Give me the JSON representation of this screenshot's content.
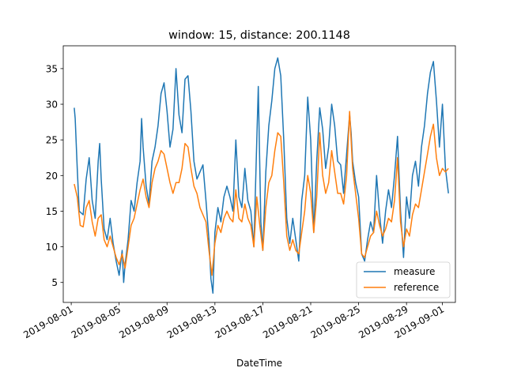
{
  "chart_data": {
    "type": "line",
    "title": "window: 15, distance: 200.1148",
    "xlabel": "DateTime",
    "ylabel": "",
    "x_range": [
      "2019-07-31T08:00",
      "2019-09-02T02:00"
    ],
    "ylim": [
      2.2,
      38.2
    ],
    "x_ticks": [
      "2019-08-01",
      "2019-08-05",
      "2019-08-09",
      "2019-08-13",
      "2019-08-17",
      "2019-08-21",
      "2019-08-25",
      "2019-08-29",
      "2019-09-01"
    ],
    "y_ticks": [
      5,
      10,
      15,
      20,
      25,
      30,
      35
    ],
    "grid": false,
    "legend_position": "lower right",
    "series": [
      {
        "name": "measure",
        "color": "#1f77b4",
        "points": [
          [
            "2019-08-01T06:00",
            29.5
          ],
          [
            "2019-08-01T08:00",
            28.0
          ],
          [
            "2019-08-01T12:00",
            21.0
          ],
          [
            "2019-08-01T16:00",
            15.0
          ],
          [
            "2019-08-02T00:00",
            14.5
          ],
          [
            "2019-08-02T06:00",
            19.5
          ],
          [
            "2019-08-02T12:00",
            22.5
          ],
          [
            "2019-08-02T18:00",
            16.5
          ],
          [
            "2019-08-03T00:00",
            14.0
          ],
          [
            "2019-08-03T06:00",
            22.0
          ],
          [
            "2019-08-03T09:00",
            24.5
          ],
          [
            "2019-08-03T12:00",
            19.5
          ],
          [
            "2019-08-03T18:00",
            12.5
          ],
          [
            "2019-08-04T00:00",
            11.0
          ],
          [
            "2019-08-04T06:00",
            14.0
          ],
          [
            "2019-08-04T12:00",
            10.5
          ],
          [
            "2019-08-04T18:00",
            8.0
          ],
          [
            "2019-08-05T00:00",
            6.0
          ],
          [
            "2019-08-05T06:00",
            9.5
          ],
          [
            "2019-08-05T09:00",
            5.0
          ],
          [
            "2019-08-05T12:00",
            7.5
          ],
          [
            "2019-08-05T18:00",
            11.0
          ],
          [
            "2019-08-06T00:00",
            16.5
          ],
          [
            "2019-08-06T06:00",
            15.0
          ],
          [
            "2019-08-06T12:00",
            19.0
          ],
          [
            "2019-08-06T18:00",
            22.0
          ],
          [
            "2019-08-06T21:00",
            28.0
          ],
          [
            "2019-08-07T00:00",
            24.0
          ],
          [
            "2019-08-07T06:00",
            18.5
          ],
          [
            "2019-08-07T12:00",
            16.0
          ],
          [
            "2019-08-07T18:00",
            22.0
          ],
          [
            "2019-08-08T00:00",
            24.0
          ],
          [
            "2019-08-08T06:00",
            27.0
          ],
          [
            "2019-08-08T12:00",
            31.5
          ],
          [
            "2019-08-08T18:00",
            33.0
          ],
          [
            "2019-08-09T00:00",
            29.0
          ],
          [
            "2019-08-09T06:00",
            24.0
          ],
          [
            "2019-08-09T12:00",
            26.5
          ],
          [
            "2019-08-09T18:00",
            35.0
          ],
          [
            "2019-08-10T00:00",
            28.5
          ],
          [
            "2019-08-10T06:00",
            26.0
          ],
          [
            "2019-08-10T12:00",
            33.5
          ],
          [
            "2019-08-10T18:00",
            34.0
          ],
          [
            "2019-08-11T00:00",
            29.0
          ],
          [
            "2019-08-11T06:00",
            22.0
          ],
          [
            "2019-08-11T12:00",
            19.5
          ],
          [
            "2019-08-11T18:00",
            20.5
          ],
          [
            "2019-08-12T00:00",
            21.5
          ],
          [
            "2019-08-12T06:00",
            16.5
          ],
          [
            "2019-08-12T12:00",
            11.0
          ],
          [
            "2019-08-12T16:00",
            5.5
          ],
          [
            "2019-08-12T20:00",
            3.5
          ],
          [
            "2019-08-13T00:00",
            12.0
          ],
          [
            "2019-08-13T06:00",
            15.5
          ],
          [
            "2019-08-13T12:00",
            13.5
          ],
          [
            "2019-08-13T18:00",
            17.0
          ],
          [
            "2019-08-14T00:00",
            18.5
          ],
          [
            "2019-08-14T06:00",
            17.0
          ],
          [
            "2019-08-14T12:00",
            15.0
          ],
          [
            "2019-08-14T18:00",
            25.0
          ],
          [
            "2019-08-15T00:00",
            17.0
          ],
          [
            "2019-08-15T06:00",
            15.5
          ],
          [
            "2019-08-15T12:00",
            21.0
          ],
          [
            "2019-08-15T18:00",
            16.5
          ],
          [
            "2019-08-16T00:00",
            15.0
          ],
          [
            "2019-08-16T06:00",
            10.0
          ],
          [
            "2019-08-16T12:00",
            25.0
          ],
          [
            "2019-08-16T15:00",
            32.5
          ],
          [
            "2019-08-16T20:00",
            13.5
          ],
          [
            "2019-08-17T00:00",
            9.5
          ],
          [
            "2019-08-17T06:00",
            20.5
          ],
          [
            "2019-08-17T12:00",
            27.0
          ],
          [
            "2019-08-17T18:00",
            30.5
          ],
          [
            "2019-08-18T00:00",
            35.0
          ],
          [
            "2019-08-18T06:00",
            36.5
          ],
          [
            "2019-08-18T12:00",
            34.0
          ],
          [
            "2019-08-18T18:00",
            25.0
          ],
          [
            "2019-08-19T00:00",
            14.0
          ],
          [
            "2019-08-19T06:00",
            10.5
          ],
          [
            "2019-08-19T12:00",
            14.0
          ],
          [
            "2019-08-19T18:00",
            11.0
          ],
          [
            "2019-08-20T00:00",
            8.0
          ],
          [
            "2019-08-20T06:00",
            16.5
          ],
          [
            "2019-08-20T12:00",
            20.0
          ],
          [
            "2019-08-20T18:00",
            31.0
          ],
          [
            "2019-08-21T00:00",
            25.0
          ],
          [
            "2019-08-21T06:00",
            12.0
          ],
          [
            "2019-08-21T12:00",
            22.0
          ],
          [
            "2019-08-21T18:00",
            29.5
          ],
          [
            "2019-08-22T00:00",
            26.5
          ],
          [
            "2019-08-22T06:00",
            21.0
          ],
          [
            "2019-08-22T12:00",
            24.0
          ],
          [
            "2019-08-22T18:00",
            30.0
          ],
          [
            "2019-08-23T00:00",
            27.0
          ],
          [
            "2019-08-23T06:00",
            22.0
          ],
          [
            "2019-08-23T12:00",
            21.5
          ],
          [
            "2019-08-23T18:00",
            17.5
          ],
          [
            "2019-08-24T00:00",
            23.0
          ],
          [
            "2019-08-24T06:00",
            28.5
          ],
          [
            "2019-08-24T09:00",
            26.0
          ],
          [
            "2019-08-24T12:00",
            22.0
          ],
          [
            "2019-08-24T18:00",
            19.0
          ],
          [
            "2019-08-25T00:00",
            17.0
          ],
          [
            "2019-08-25T06:00",
            9.0
          ],
          [
            "2019-08-25T12:00",
            8.0
          ],
          [
            "2019-08-25T18:00",
            11.0
          ],
          [
            "2019-08-26T00:00",
            13.5
          ],
          [
            "2019-08-26T06:00",
            12.0
          ],
          [
            "2019-08-26T12:00",
            20.0
          ],
          [
            "2019-08-26T18:00",
            14.5
          ],
          [
            "2019-08-27T00:00",
            10.5
          ],
          [
            "2019-08-27T06:00",
            15.0
          ],
          [
            "2019-08-27T12:00",
            18.0
          ],
          [
            "2019-08-27T18:00",
            15.5
          ],
          [
            "2019-08-28T00:00",
            20.0
          ],
          [
            "2019-08-28T06:00",
            25.5
          ],
          [
            "2019-08-28T12:00",
            15.0
          ],
          [
            "2019-08-28T18:00",
            8.5
          ],
          [
            "2019-08-29T00:00",
            17.0
          ],
          [
            "2019-08-29T06:00",
            14.0
          ],
          [
            "2019-08-29T12:00",
            20.0
          ],
          [
            "2019-08-29T18:00",
            22.0
          ],
          [
            "2019-08-30T00:00",
            18.5
          ],
          [
            "2019-08-30T06:00",
            24.0
          ],
          [
            "2019-08-30T12:00",
            27.0
          ],
          [
            "2019-08-30T18:00",
            31.5
          ],
          [
            "2019-08-31T00:00",
            34.5
          ],
          [
            "2019-08-31T06:00",
            36.0
          ],
          [
            "2019-08-31T12:00",
            30.5
          ],
          [
            "2019-08-31T18:00",
            24.0
          ],
          [
            "2019-09-01T00:00",
            30.0
          ],
          [
            "2019-09-01T06:00",
            21.0
          ],
          [
            "2019-09-01T12:00",
            17.5
          ]
        ]
      },
      {
        "name": "reference",
        "color": "#ff7f0e",
        "points": [
          [
            "2019-08-01T06:00",
            18.8
          ],
          [
            "2019-08-01T12:00",
            17.0
          ],
          [
            "2019-08-01T18:00",
            13.0
          ],
          [
            "2019-08-02T00:00",
            12.8
          ],
          [
            "2019-08-02T06:00",
            15.5
          ],
          [
            "2019-08-02T12:00",
            16.5
          ],
          [
            "2019-08-02T18:00",
            13.5
          ],
          [
            "2019-08-03T00:00",
            11.5
          ],
          [
            "2019-08-03T06:00",
            14.0
          ],
          [
            "2019-08-03T12:00",
            14.5
          ],
          [
            "2019-08-03T18:00",
            11.0
          ],
          [
            "2019-08-04T00:00",
            10.0
          ],
          [
            "2019-08-04T06:00",
            11.5
          ],
          [
            "2019-08-04T12:00",
            10.0
          ],
          [
            "2019-08-04T18:00",
            8.5
          ],
          [
            "2019-08-05T00:00",
            7.5
          ],
          [
            "2019-08-05T06:00",
            9.0
          ],
          [
            "2019-08-05T12:00",
            7.0
          ],
          [
            "2019-08-05T18:00",
            10.0
          ],
          [
            "2019-08-06T00:00",
            13.0
          ],
          [
            "2019-08-06T06:00",
            14.0
          ],
          [
            "2019-08-06T12:00",
            16.0
          ],
          [
            "2019-08-06T18:00",
            18.0
          ],
          [
            "2019-08-07T00:00",
            19.5
          ],
          [
            "2019-08-07T06:00",
            17.0
          ],
          [
            "2019-08-07T12:00",
            15.5
          ],
          [
            "2019-08-07T18:00",
            19.0
          ],
          [
            "2019-08-08T00:00",
            21.0
          ],
          [
            "2019-08-08T06:00",
            22.0
          ],
          [
            "2019-08-08T12:00",
            23.5
          ],
          [
            "2019-08-08T18:00",
            23.0
          ],
          [
            "2019-08-09T00:00",
            21.0
          ],
          [
            "2019-08-09T06:00",
            19.0
          ],
          [
            "2019-08-09T12:00",
            17.5
          ],
          [
            "2019-08-09T18:00",
            19.0
          ],
          [
            "2019-08-10T00:00",
            19.0
          ],
          [
            "2019-08-10T06:00",
            21.0
          ],
          [
            "2019-08-10T12:00",
            24.5
          ],
          [
            "2019-08-10T18:00",
            24.0
          ],
          [
            "2019-08-11T00:00",
            21.0
          ],
          [
            "2019-08-11T06:00",
            18.5
          ],
          [
            "2019-08-11T12:00",
            17.5
          ],
          [
            "2019-08-11T18:00",
            15.5
          ],
          [
            "2019-08-12T00:00",
            14.5
          ],
          [
            "2019-08-12T06:00",
            13.5
          ],
          [
            "2019-08-12T12:00",
            9.5
          ],
          [
            "2019-08-12T18:00",
            6.0
          ],
          [
            "2019-08-13T00:00",
            10.5
          ],
          [
            "2019-08-13T06:00",
            13.0
          ],
          [
            "2019-08-13T12:00",
            12.0
          ],
          [
            "2019-08-13T18:00",
            14.0
          ],
          [
            "2019-08-14T00:00",
            15.0
          ],
          [
            "2019-08-14T06:00",
            14.0
          ],
          [
            "2019-08-14T12:00",
            13.5
          ],
          [
            "2019-08-14T18:00",
            18.0
          ],
          [
            "2019-08-15T00:00",
            14.0
          ],
          [
            "2019-08-15T06:00",
            13.5
          ],
          [
            "2019-08-15T12:00",
            16.0
          ],
          [
            "2019-08-15T18:00",
            14.0
          ],
          [
            "2019-08-16T00:00",
            13.0
          ],
          [
            "2019-08-16T06:00",
            10.0
          ],
          [
            "2019-08-16T12:00",
            17.0
          ],
          [
            "2019-08-16T18:00",
            13.0
          ],
          [
            "2019-08-17T00:00",
            9.5
          ],
          [
            "2019-08-17T06:00",
            15.5
          ],
          [
            "2019-08-17T12:00",
            19.0
          ],
          [
            "2019-08-17T18:00",
            20.0
          ],
          [
            "2019-08-18T00:00",
            23.5
          ],
          [
            "2019-08-18T06:00",
            26.0
          ],
          [
            "2019-08-18T12:00",
            25.5
          ],
          [
            "2019-08-18T18:00",
            19.0
          ],
          [
            "2019-08-19T00:00",
            11.5
          ],
          [
            "2019-08-19T06:00",
            9.5
          ],
          [
            "2019-08-19T12:00",
            11.0
          ],
          [
            "2019-08-19T18:00",
            9.5
          ],
          [
            "2019-08-20T00:00",
            9.0
          ],
          [
            "2019-08-20T06:00",
            12.0
          ],
          [
            "2019-08-20T12:00",
            15.0
          ],
          [
            "2019-08-20T18:00",
            20.0
          ],
          [
            "2019-08-21T00:00",
            17.5
          ],
          [
            "2019-08-21T06:00",
            12.0
          ],
          [
            "2019-08-21T12:00",
            17.0
          ],
          [
            "2019-08-21T18:00",
            26.0
          ],
          [
            "2019-08-22T00:00",
            20.0
          ],
          [
            "2019-08-22T06:00",
            17.5
          ],
          [
            "2019-08-22T12:00",
            19.0
          ],
          [
            "2019-08-22T18:00",
            23.5
          ],
          [
            "2019-08-23T00:00",
            20.5
          ],
          [
            "2019-08-23T06:00",
            17.5
          ],
          [
            "2019-08-23T12:00",
            17.5
          ],
          [
            "2019-08-23T18:00",
            16.0
          ],
          [
            "2019-08-24T00:00",
            20.0
          ],
          [
            "2019-08-24T06:00",
            29.0
          ],
          [
            "2019-08-24T12:00",
            21.0
          ],
          [
            "2019-08-24T18:00",
            17.5
          ],
          [
            "2019-08-25T00:00",
            14.0
          ],
          [
            "2019-08-25T06:00",
            9.0
          ],
          [
            "2019-08-25T12:00",
            8.5
          ],
          [
            "2019-08-25T18:00",
            10.0
          ],
          [
            "2019-08-26T00:00",
            11.5
          ],
          [
            "2019-08-26T06:00",
            12.0
          ],
          [
            "2019-08-26T12:00",
            15.0
          ],
          [
            "2019-08-26T18:00",
            13.0
          ],
          [
            "2019-08-27T00:00",
            11.5
          ],
          [
            "2019-08-27T06:00",
            12.5
          ],
          [
            "2019-08-27T12:00",
            14.0
          ],
          [
            "2019-08-27T18:00",
            13.5
          ],
          [
            "2019-08-28T00:00",
            16.5
          ],
          [
            "2019-08-28T06:00",
            22.5
          ],
          [
            "2019-08-28T12:00",
            13.5
          ],
          [
            "2019-08-28T18:00",
            10.0
          ],
          [
            "2019-08-29T00:00",
            12.5
          ],
          [
            "2019-08-29T06:00",
            11.5
          ],
          [
            "2019-08-29T12:00",
            14.5
          ],
          [
            "2019-08-29T18:00",
            16.0
          ],
          [
            "2019-08-30T00:00",
            15.5
          ],
          [
            "2019-08-30T06:00",
            18.0
          ],
          [
            "2019-08-30T12:00",
            20.5
          ],
          [
            "2019-08-30T18:00",
            23.0
          ],
          [
            "2019-08-31T00:00",
            25.5
          ],
          [
            "2019-08-31T06:00",
            27.2
          ],
          [
            "2019-08-31T12:00",
            22.5
          ],
          [
            "2019-08-31T18:00",
            20.0
          ],
          [
            "2019-09-01T00:00",
            21.0
          ],
          [
            "2019-09-01T06:00",
            20.5
          ],
          [
            "2019-09-01T12:00",
            21.0
          ]
        ]
      }
    ]
  }
}
